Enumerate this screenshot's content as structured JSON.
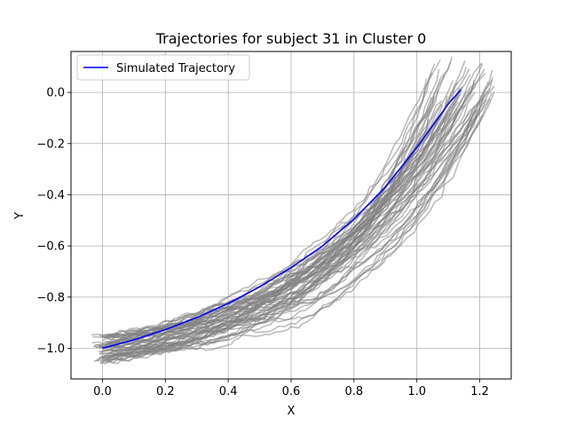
{
  "chart_data": {
    "type": "line",
    "title": "Trajectories for subject 31 in Cluster 0",
    "xlabel": "X",
    "ylabel": "Y",
    "xlim": [
      -0.1,
      1.3
    ],
    "ylim": [
      -1.12,
      0.16
    ],
    "x_ticks": [
      0.0,
      0.2,
      0.4,
      0.6,
      0.8,
      1.0,
      1.2
    ],
    "x_tick_labels": [
      "0.0",
      "0.2",
      "0.4",
      "0.6",
      "0.8",
      "1.0",
      "1.2"
    ],
    "y_ticks": [
      -1.0,
      -0.8,
      -0.6,
      -0.4,
      -0.2,
      0.0
    ],
    "y_tick_labels": [
      "−1.0",
      "−0.8",
      "−0.6",
      "−0.4",
      "−0.2",
      "0.0"
    ],
    "grid": true,
    "legend_position": "top-left",
    "legend_entries": [
      "Simulated Trajectory"
    ],
    "series": [
      {
        "name": "Simulated Trajectory",
        "color": "#0000ff",
        "x": [
          0.0,
          0.1,
          0.2,
          0.3,
          0.4,
          0.5,
          0.6,
          0.7,
          0.8,
          0.9,
          1.0,
          1.1,
          1.14
        ],
        "y": [
          -1.0,
          -0.967,
          -0.927,
          -0.88,
          -0.825,
          -0.76,
          -0.685,
          -0.6,
          -0.495,
          -0.37,
          -0.215,
          -0.045,
          0.01
        ]
      }
    ],
    "background_trajectories": {
      "color": "#808080",
      "opacity": 0.55,
      "count": 60,
      "start_x_range": [
        -0.03,
        0.03
      ],
      "start_y_range": [
        -1.06,
        -0.95
      ],
      "end_x_range": [
        1.03,
        1.25
      ],
      "end_y_range": [
        -0.1,
        0.14
      ]
    }
  }
}
